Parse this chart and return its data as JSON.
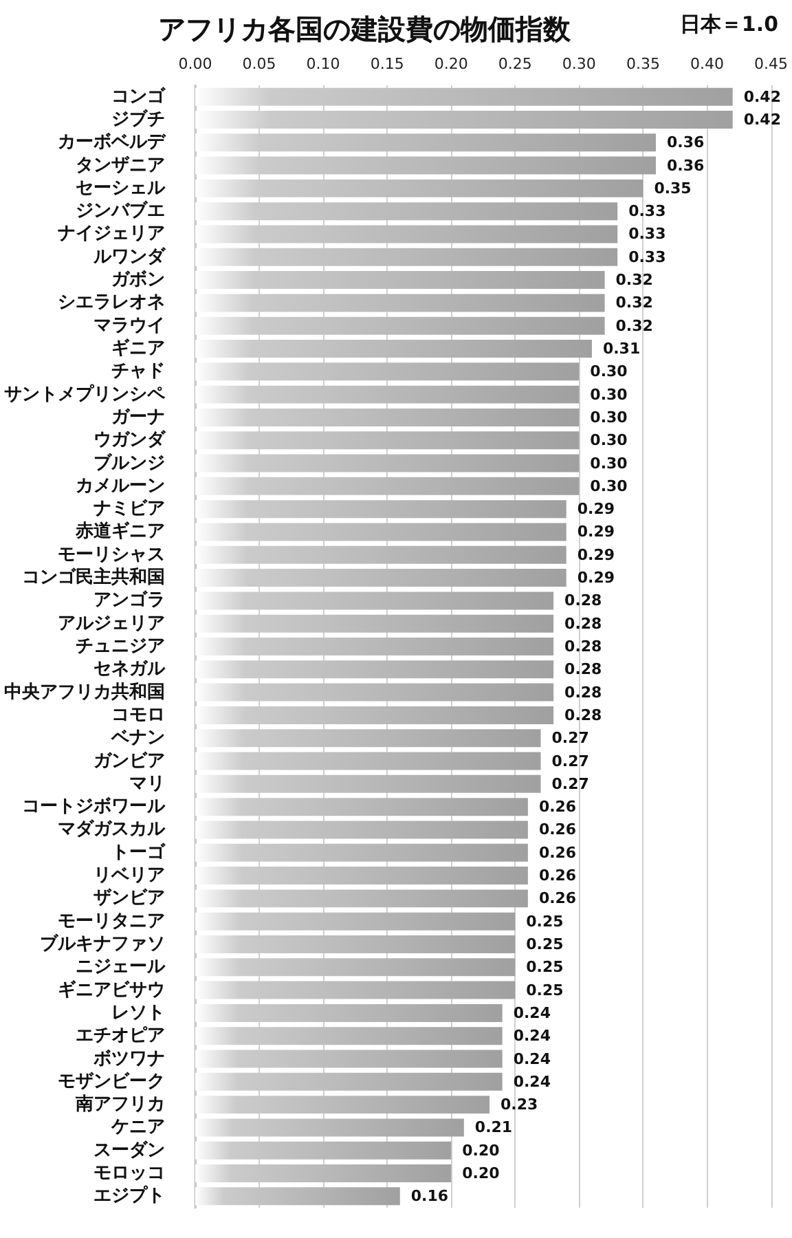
{
  "chart_data": {
    "type": "bar",
    "orientation": "horizontal",
    "title": "アフリカ各国の建設費の物価指数",
    "annotations": [
      "日本＝1.0"
    ],
    "categories": [
      "コンゴ",
      "ジブチ",
      "カーボベルデ",
      "タンザニア",
      "セーシェル",
      "ジンバブエ",
      "ナイジェリア",
      "ルワンダ",
      "ガボン",
      "シエラレオネ",
      "マラウイ",
      "ギニア",
      "チャド",
      "サントメプリンシペ",
      "ガーナ",
      "ウガンダ",
      "ブルンジ",
      "カメルーン",
      "ナミビア",
      "赤道ギニア",
      "モーリシャス",
      "コンゴ民主共和国",
      "アンゴラ",
      "アルジェリア",
      "チュニジア",
      "セネガル",
      "中央アフリカ共和国",
      "コモロ",
      "ベナン",
      "ガンビア",
      "マリ",
      "コートジボワール",
      "マダガスカル",
      "トーゴ",
      "リベリア",
      "ザンビア",
      "モーリタニア",
      "ブルキナファソ",
      "ニジェール",
      "ギニアビサウ",
      "レソト",
      "エチオピア",
      "ボツワナ",
      "モザンビーク",
      "南アフリカ",
      "ケニア",
      "スーダン",
      "モロッコ",
      "エジプト"
    ],
    "values": [
      0.42,
      0.42,
      0.36,
      0.36,
      0.35,
      0.33,
      0.33,
      0.33,
      0.32,
      0.32,
      0.32,
      0.31,
      0.3,
      0.3,
      0.3,
      0.3,
      0.3,
      0.3,
      0.29,
      0.29,
      0.29,
      0.29,
      0.28,
      0.28,
      0.28,
      0.28,
      0.28,
      0.28,
      0.27,
      0.27,
      0.27,
      0.26,
      0.26,
      0.26,
      0.26,
      0.26,
      0.25,
      0.25,
      0.25,
      0.25,
      0.24,
      0.24,
      0.24,
      0.24,
      0.23,
      0.21,
      0.2,
      0.2,
      0.16
    ],
    "value_labels": [
      "0.42",
      "0.42",
      "0.36",
      "0.36",
      "0.35",
      "0.33",
      "0.33",
      "0.33",
      "0.32",
      "0.32",
      "0.32",
      "0.31",
      "0.30",
      "0.30",
      "0.30",
      "0.30",
      "0.30",
      "0.30",
      "0.29",
      "0.29",
      "0.29",
      "0.29",
      "0.28",
      "0.28",
      "0.28",
      "0.28",
      "0.28",
      "0.28",
      "0.27",
      "0.27",
      "0.27",
      "0.26",
      "0.26",
      "0.26",
      "0.26",
      "0.26",
      "0.25",
      "0.25",
      "0.25",
      "0.25",
      "0.24",
      "0.24",
      "0.24",
      "0.24",
      "0.23",
      "0.21",
      "0.20",
      "0.20",
      "0.16"
    ],
    "color": "#a0a0a0",
    "xlim": [
      0,
      0.45
    ],
    "xticks": [
      {
        "value": 0,
        "label": "0.00"
      },
      {
        "value": 0.05,
        "label": "0.05"
      },
      {
        "value": 0.1,
        "label": "0.10"
      },
      {
        "value": 0.15,
        "label": "0.15"
      },
      {
        "value": 0.2,
        "label": "0.20"
      },
      {
        "value": 0.25,
        "label": "0.25"
      },
      {
        "value": 0.3,
        "label": "0.30"
      },
      {
        "value": 0.35,
        "label": "0.35"
      },
      {
        "value": 0.4,
        "label": "0.40"
      },
      {
        "value": 0.45,
        "label": "0.45"
      }
    ],
    "grid": "x"
  }
}
